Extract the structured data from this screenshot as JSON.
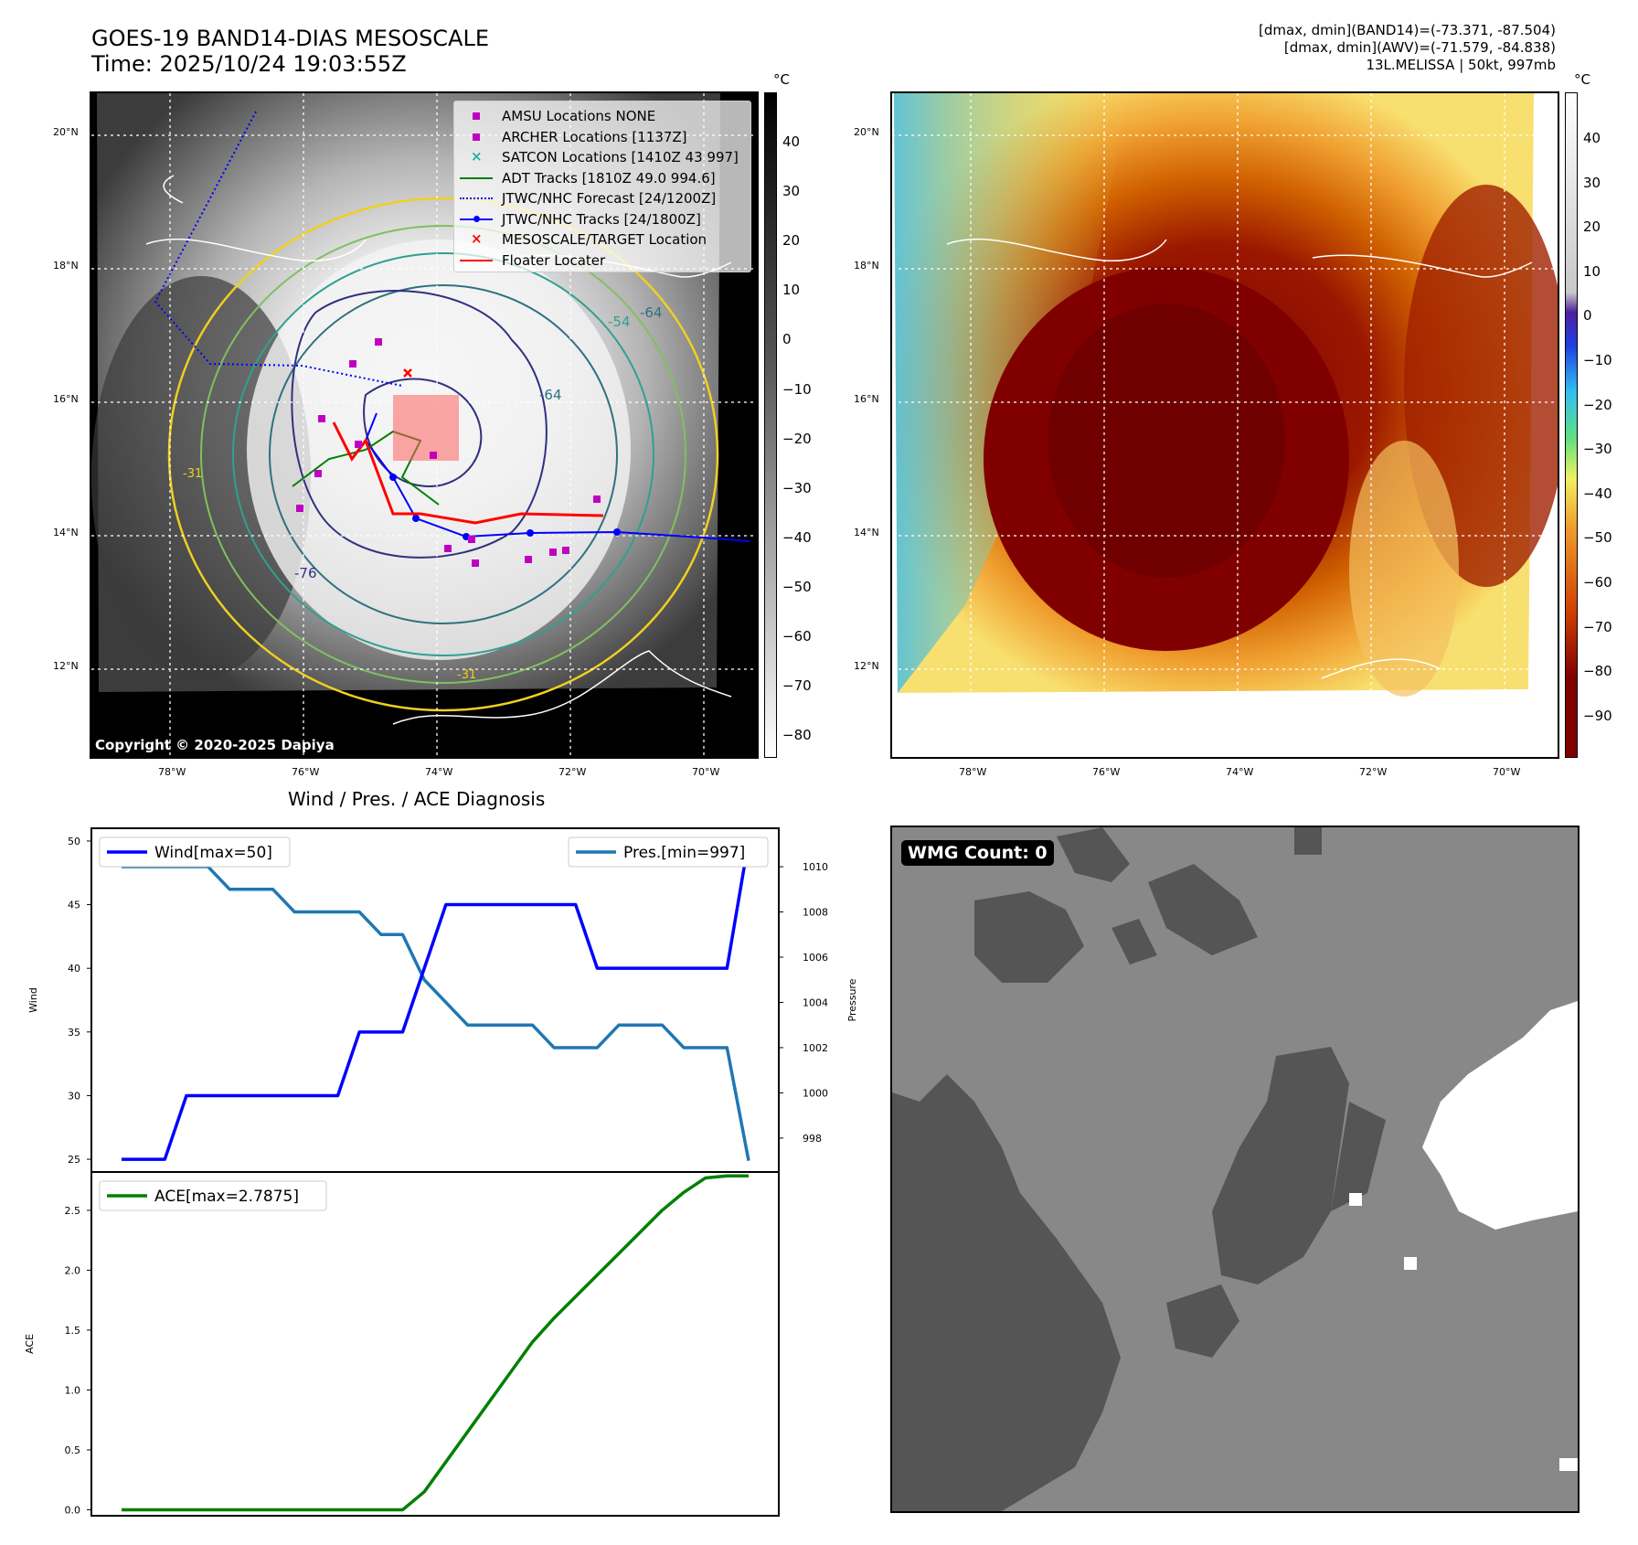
{
  "header": {
    "title_line1": "GOES-19 BAND14-DIAS MESOSCALE",
    "title_line2": "Time: 2025/10/24 19:03:55Z",
    "stats_line1": "[dmax, dmin](BAND14)=(-73.371, -87.504)",
    "stats_line2": "[dmax, dmin](AWV)=(-71.579, -84.838)",
    "stats_line3": "13L.MELISSA | 50kt, 997mb"
  },
  "maps": {
    "lat_labels": [
      "20°N",
      "18°N",
      "16°N",
      "14°N",
      "12°N"
    ],
    "lon_labels": [
      "78°W",
      "76°W",
      "74°W",
      "72°W",
      "70°W"
    ],
    "copyright": "Copyright © 2020-2025 Dapiya",
    "left_colorbar": {
      "unit": "°C",
      "ticks": [
        "40",
        "30",
        "20",
        "10",
        "0",
        "−10",
        "−20",
        "−30",
        "−40",
        "−50",
        "−60",
        "−70",
        "−80"
      ]
    },
    "right_colorbar": {
      "unit": "°C",
      "ticks": [
        "40",
        "30",
        "20",
        "10",
        "0",
        "−10",
        "−20",
        "−30",
        "−40",
        "−50",
        "−60",
        "−70",
        "−80",
        "−90"
      ]
    },
    "legend": [
      {
        "label": "AMSU Locations NONE",
        "color": "#c000c0",
        "marker": "square"
      },
      {
        "label": "ARCHER Locations [1137Z]",
        "color": "#c000c0",
        "marker": "square"
      },
      {
        "label": "SATCON Locations [1410Z 43 997]",
        "color": "#20b0a0",
        "marker": "x"
      },
      {
        "label": "ADT Tracks [1810Z 49.0 994.6]",
        "color": "#008000",
        "marker": "line"
      },
      {
        "label": "JTWC/NHC Forecast [24/1200Z]",
        "color": "#0000ff",
        "marker": "dotted"
      },
      {
        "label": "JTWC/NHC Tracks [24/1800Z]",
        "color": "#0000ff",
        "marker": "line-dot"
      },
      {
        "label": "MESOSCALE/TARGET Location",
        "color": "#ff0000",
        "marker": "x"
      },
      {
        "label": "Floater Locater",
        "color": "#ff0000",
        "marker": "line"
      }
    ],
    "contour_labels": [
      "-54",
      "-64",
      "-64",
      "-76",
      "-31",
      "-31"
    ]
  },
  "wmg": {
    "label": "WMG Count: 0"
  },
  "chart_data": [
    {
      "type": "line",
      "title": "Wind / Pres. / ACE Diagnosis",
      "x": [
        0,
        1,
        2,
        3,
        4,
        5,
        6,
        7,
        8,
        9,
        10,
        11,
        12,
        13,
        14,
        15,
        16,
        17,
        18,
        19,
        20,
        21,
        22,
        23,
        24,
        25,
        26,
        27,
        28,
        29
      ],
      "ylabel": "Wind",
      "ylabel_right": "Pressure",
      "ylim": [
        24,
        51
      ],
      "ylim_right": [
        996.5,
        1011.7
      ],
      "yticks": [
        25,
        30,
        35,
        40,
        45,
        50
      ],
      "yticks_right": [
        998,
        1000,
        1002,
        1004,
        1006,
        1008,
        1010
      ],
      "series": [
        {
          "name": "Wind[max=50]",
          "axis": "left",
          "color": "#0000ff",
          "values": [
            25,
            25,
            25,
            30,
            30,
            30,
            30,
            30,
            30,
            30,
            30,
            35,
            35,
            35,
            40,
            45,
            45,
            45,
            45,
            45,
            45,
            45,
            40,
            40,
            40,
            40,
            40,
            40,
            40,
            50
          ]
        },
        {
          "name": "Pres.[min=997]",
          "axis": "right",
          "color": "#1f77b4",
          "values": [
            1010,
            1010,
            1010,
            1010,
            1010,
            1009,
            1009,
            1009,
            1008,
            1008,
            1008,
            1008,
            1007,
            1007,
            1005,
            1004,
            1003,
            1003,
            1003,
            1003,
            1002,
            1002,
            1002,
            1003,
            1003,
            1003,
            1002,
            1002,
            1002,
            997
          ]
        }
      ]
    },
    {
      "type": "line",
      "x": [
        0,
        1,
        2,
        3,
        4,
        5,
        6,
        7,
        8,
        9,
        10,
        11,
        12,
        13,
        14,
        15,
        16,
        17,
        18,
        19,
        20,
        21,
        22,
        23,
        24,
        25,
        26,
        27,
        28,
        29
      ],
      "ylabel": "ACE",
      "ylim": [
        -0.05,
        2.82
      ],
      "yticks": [
        0.0,
        0.5,
        1.0,
        1.5,
        2.0,
        2.5
      ],
      "series": [
        {
          "name": "ACE[max=2.7875]",
          "color": "#008000",
          "values": [
            0,
            0,
            0,
            0,
            0,
            0,
            0,
            0,
            0,
            0,
            0,
            0,
            0,
            0,
            0.15,
            0.4,
            0.65,
            0.9,
            1.15,
            1.4,
            1.6,
            1.78,
            1.96,
            2.14,
            2.32,
            2.5,
            2.65,
            2.77,
            2.7875,
            2.7875
          ]
        }
      ]
    }
  ]
}
